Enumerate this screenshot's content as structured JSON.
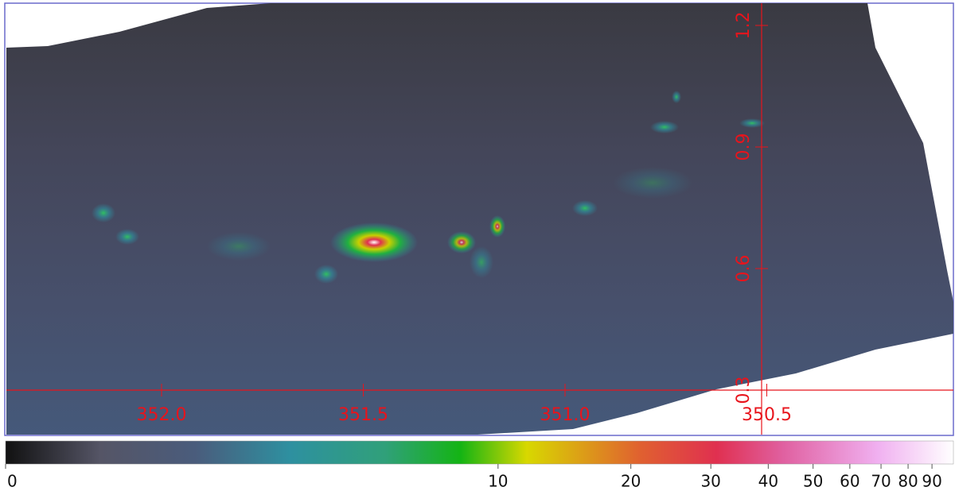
{
  "image": {
    "xticks": [
      {
        "value": 352,
        "label": "352.0"
      },
      351.5,
      {
        "value": 351,
        "label": "351.0"
      },
      350.5
    ],
    "yticks": [
      0.3,
      0.6,
      0.9,
      1.2
    ],
    "axis_color": "#e8141c"
  },
  "colorbar": {
    "lim": [
      0,
      100
    ],
    "scale": "log",
    "ticks": [
      0,
      10,
      20,
      30,
      40,
      50,
      60,
      70,
      80,
      90
    ]
  }
}
